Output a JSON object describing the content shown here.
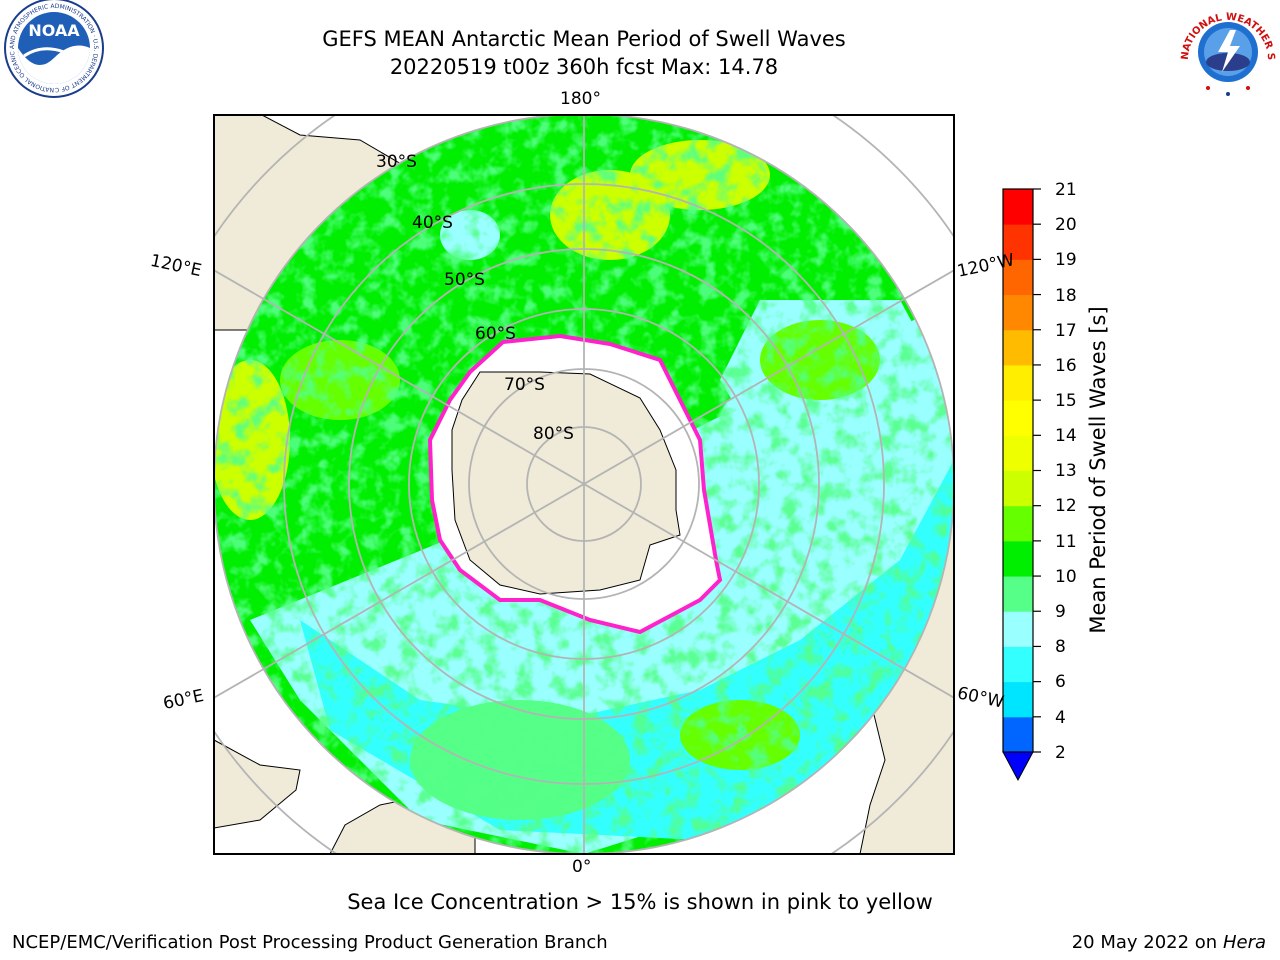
{
  "header": {
    "title_line1": "GEFS MEAN Antarctic Mean Period of Swell Waves",
    "title_line2": "20220519 t00z 360h fcst   Max: 14.78"
  },
  "logos": {
    "noaa": {
      "text": "NOAA",
      "ring_text": "NATIONAL OCEANIC AND ATMOSPHERIC ADMINISTRATION · U.S. DEPARTMENT OF COMMERCE"
    },
    "nws": {
      "ring_text": "NATIONAL WEATHER SERVICE"
    }
  },
  "map": {
    "projection": "south polar stereographic",
    "longitude_labels": {
      "top": "180°",
      "bottom": "0°",
      "left_upper": "120°E",
      "left_lower": "60°E",
      "right_upper": "120°W",
      "right_lower": "60°W"
    },
    "latitude_labels": [
      "30°S",
      "40°S",
      "50°S",
      "60°S",
      "70°S",
      "80°S"
    ],
    "colors": {
      "land": "#efebd8",
      "sea_ice": "#ffffff",
      "ice_edge": "#ff22cc",
      "graticule": "#b4b4b4"
    }
  },
  "colorbar": {
    "label": "Mean Period of Swell Waves [s]",
    "ticks": [
      "21",
      "20",
      "19",
      "18",
      "17",
      "16",
      "15",
      "14",
      "13",
      "12",
      "11",
      "10",
      "9",
      "8",
      "6",
      "4",
      "2"
    ],
    "segments": [
      {
        "range": "2-4",
        "color": "#0066ff"
      },
      {
        "range": "4-6",
        "color": "#00e5ff"
      },
      {
        "range": "6-8",
        "color": "#33ffff"
      },
      {
        "range": "8-9",
        "color": "#99ffff"
      },
      {
        "range": "9-10",
        "color": "#55ff88"
      },
      {
        "range": "10-11",
        "color": "#00ee00"
      },
      {
        "range": "11-12",
        "color": "#66ff00"
      },
      {
        "range": "12-13",
        "color": "#ccff00"
      },
      {
        "range": "13-14",
        "color": "#eeff00"
      },
      {
        "range": "14-15",
        "color": "#ffff00"
      },
      {
        "range": "15-16",
        "color": "#ffee00"
      },
      {
        "range": "16-17",
        "color": "#ffbb00"
      },
      {
        "range": "17-18",
        "color": "#ff8800"
      },
      {
        "range": "18-19",
        "color": "#ff6600"
      },
      {
        "range": "19-20",
        "color": "#ff3300"
      },
      {
        "range": "20-21",
        "color": "#ff0000"
      }
    ],
    "below_min_color": "#0000ff"
  },
  "caption": "Sea Ice Concentration > 15% is shown in pink to yellow",
  "footer": {
    "left": "NCEP/EMC/Verification Post Processing Product Generation Branch",
    "right_date": "20 May 2022 on",
    "right_host": "Hera"
  }
}
